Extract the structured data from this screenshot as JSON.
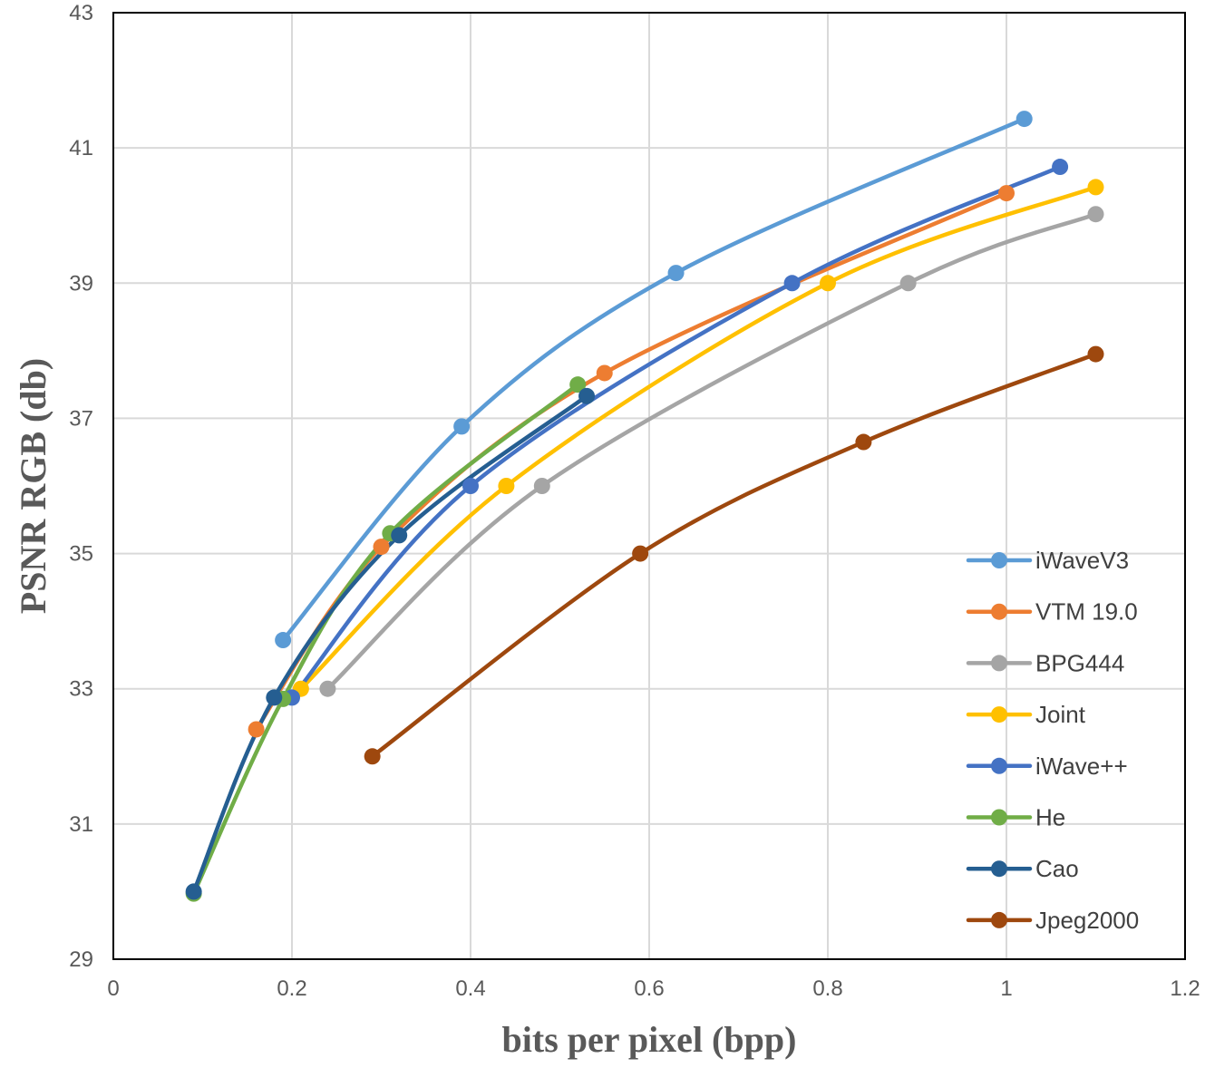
{
  "chart_data": {
    "type": "line",
    "smooth": true,
    "title": "",
    "xlabel": "bits per pixel (bpp)",
    "ylabel": "PSNR RGB (db)",
    "xlim": [
      0,
      1.2
    ],
    "ylim": [
      29,
      43
    ],
    "xticks": [
      0,
      0.2,
      0.4,
      0.6,
      0.8,
      1,
      1.2
    ],
    "xtick_labels": [
      "0",
      "0.2",
      "0.4",
      "0.6",
      "0.8",
      "1",
      "1.2"
    ],
    "yticks": [
      29,
      31,
      33,
      35,
      37,
      39,
      41,
      43
    ],
    "ytick_labels": [
      "29",
      "31",
      "33",
      "35",
      "37",
      "39",
      "41",
      "43"
    ],
    "grid": true,
    "legend_position": "bottom-right",
    "series": [
      {
        "name": "iWaveV3",
        "color": "#5B9BD5",
        "x": [
          0.19,
          0.39,
          0.63,
          1.02
        ],
        "y": [
          33.72,
          36.88,
          39.15,
          41.43
        ]
      },
      {
        "name": "VTM 19.0",
        "color": "#ED7D31",
        "x": [
          0.16,
          0.3,
          0.55,
          1.0
        ],
        "y": [
          32.4,
          35.1,
          37.67,
          40.33
        ]
      },
      {
        "name": "BPG444",
        "color": "#A5A5A5",
        "x": [
          0.24,
          0.48,
          0.89,
          1.1
        ],
        "y": [
          33.0,
          36.0,
          39.0,
          40.02
        ]
      },
      {
        "name": "Joint",
        "color": "#FFC000",
        "x": [
          0.21,
          0.44,
          0.8,
          1.1
        ],
        "y": [
          33.0,
          36.0,
          39.0,
          40.42
        ]
      },
      {
        "name": "iWave++",
        "color": "#4472C4",
        "x": [
          0.2,
          0.4,
          0.76,
          1.06
        ],
        "y": [
          32.87,
          36.0,
          39.0,
          40.72
        ]
      },
      {
        "name": "He",
        "color": "#70AD47",
        "x": [
          0.09,
          0.19,
          0.31,
          0.52
        ],
        "y": [
          29.97,
          32.85,
          35.3,
          37.5
        ]
      },
      {
        "name": "Cao",
        "color": "#255E91",
        "x": [
          0.09,
          0.18,
          0.32,
          0.53
        ],
        "y": [
          30.0,
          32.87,
          35.27,
          37.33
        ]
      },
      {
        "name": "Jpeg2000",
        "color": "#9E480E",
        "x": [
          0.29,
          0.59,
          0.84,
          1.1
        ],
        "y": [
          32.0,
          35.0,
          36.65,
          37.95
        ]
      }
    ]
  }
}
